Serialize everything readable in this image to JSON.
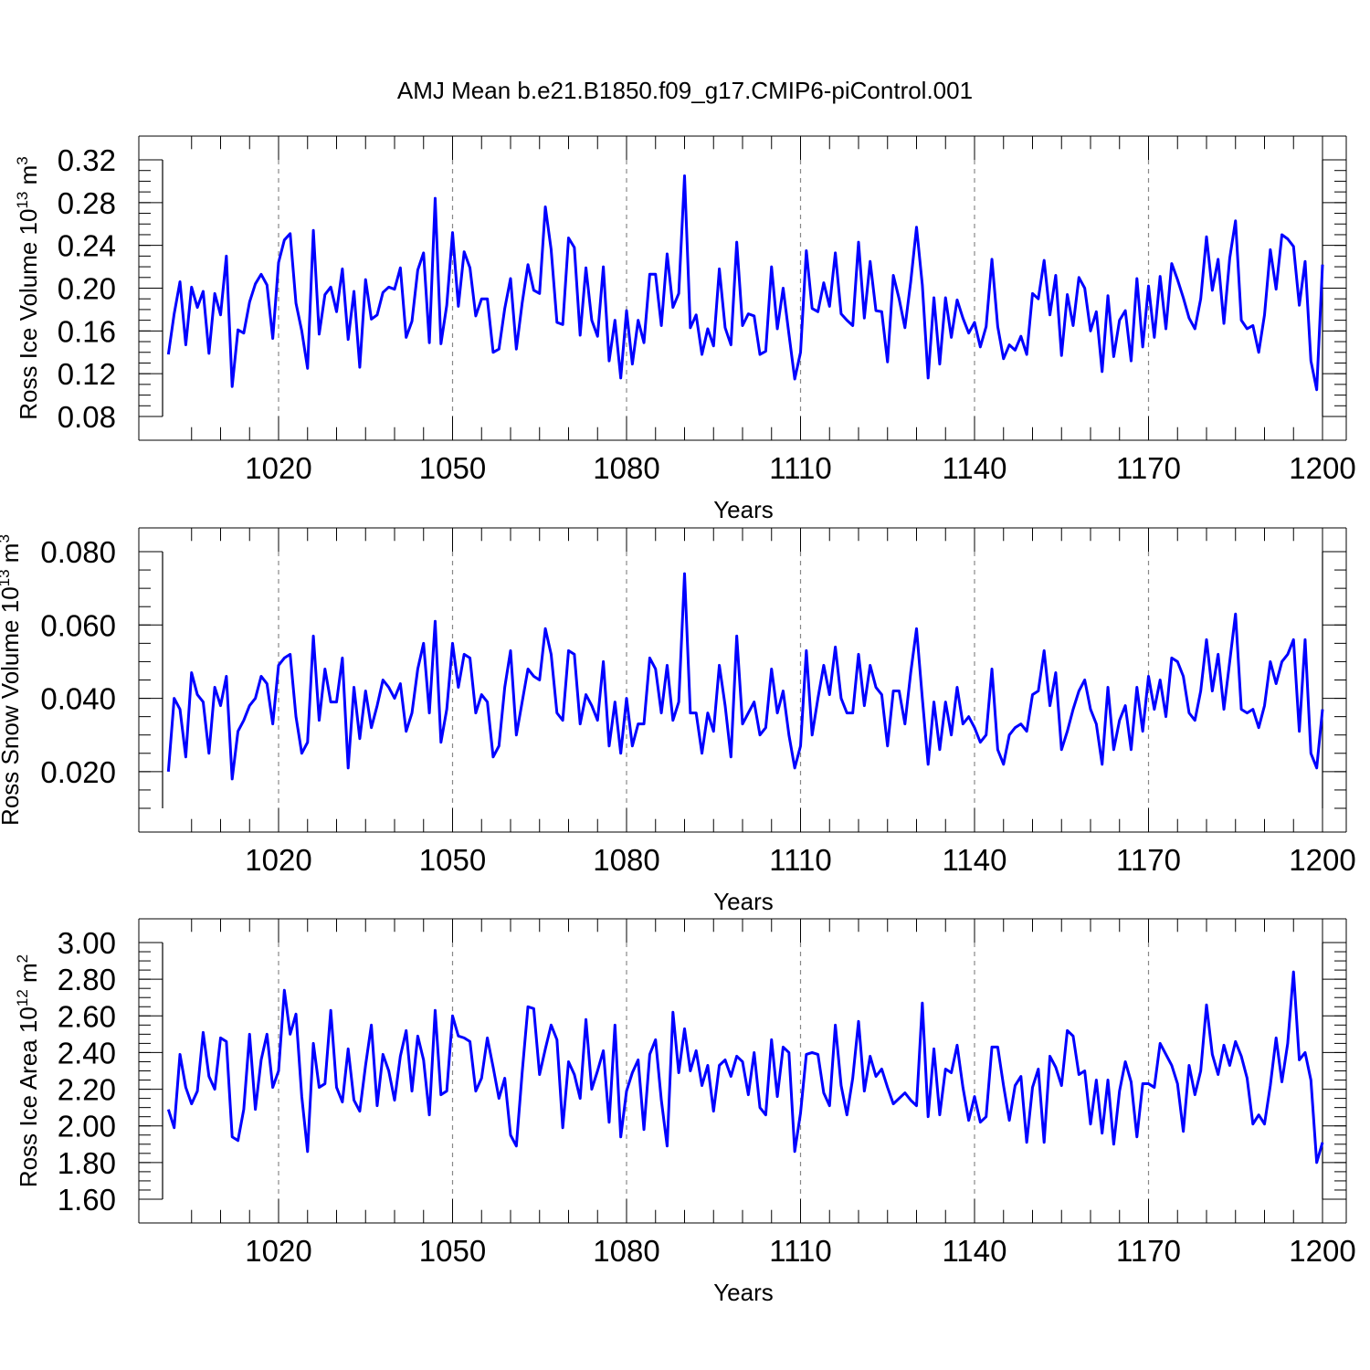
{
  "title": "AMJ Mean b.e21.B1850.f09_g17.CMIP6-piControl.001",
  "chart_data": [
    {
      "type": "line",
      "xlabel": "Years",
      "ylabel": "Ross Ice Volume 10",
      "ylabel_exp": "13",
      "ylabel_unit": "m",
      "ylabel_unit_exp": "3",
      "xlim": [
        1000,
        1200
      ],
      "ylim": [
        0.08,
        0.32
      ],
      "xticks": [
        1020,
        1050,
        1080,
        1110,
        1140,
        1170,
        1200
      ],
      "xtick_labels": [
        "1020",
        "1050",
        "1080",
        "1110",
        "1140",
        "1170",
        "1200"
      ],
      "yticks": [
        0.08,
        0.12,
        0.16,
        0.2,
        0.24,
        0.28,
        0.32
      ],
      "ytick_labels": [
        "0.08",
        "0.12",
        "0.16",
        "0.20",
        "0.24",
        "0.28",
        "0.32"
      ],
      "grid": "dashed vertical at x ticks",
      "line_color": "#0000ff",
      "x_start": 1001,
      "values": [
        0.138,
        0.176,
        0.206,
        0.147,
        0.201,
        0.182,
        0.197,
        0.139,
        0.195,
        0.175,
        0.23,
        0.108,
        0.161,
        0.158,
        0.187,
        0.204,
        0.213,
        0.203,
        0.153,
        0.224,
        0.245,
        0.251,
        0.186,
        0.16,
        0.125,
        0.254,
        0.157,
        0.194,
        0.201,
        0.178,
        0.218,
        0.152,
        0.197,
        0.126,
        0.208,
        0.171,
        0.175,
        0.196,
        0.201,
        0.199,
        0.219,
        0.154,
        0.169,
        0.217,
        0.233,
        0.149,
        0.284,
        0.148,
        0.184,
        0.252,
        0.183,
        0.234,
        0.219,
        0.174,
        0.19,
        0.19,
        0.14,
        0.143,
        0.181,
        0.209,
        0.143,
        0.186,
        0.222,
        0.198,
        0.195,
        0.276,
        0.236,
        0.168,
        0.166,
        0.247,
        0.238,
        0.156,
        0.219,
        0.17,
        0.155,
        0.22,
        0.132,
        0.17,
        0.116,
        0.179,
        0.129,
        0.17,
        0.149,
        0.213,
        0.213,
        0.165,
        0.232,
        0.182,
        0.195,
        0.305,
        0.163,
        0.175,
        0.138,
        0.162,
        0.146,
        0.218,
        0.163,
        0.147,
        0.243,
        0.165,
        0.176,
        0.174,
        0.138,
        0.141,
        0.22,
        0.162,
        0.2,
        0.157,
        0.115,
        0.14,
        0.235,
        0.181,
        0.178,
        0.205,
        0.183,
        0.233,
        0.176,
        0.17,
        0.165,
        0.243,
        0.172,
        0.225,
        0.179,
        0.178,
        0.131,
        0.212,
        0.19,
        0.163,
        0.206,
        0.257,
        0.203,
        0.116,
        0.191,
        0.129,
        0.191,
        0.154,
        0.189,
        0.172,
        0.158,
        0.168,
        0.145,
        0.164,
        0.227,
        0.164,
        0.134,
        0.147,
        0.142,
        0.155,
        0.138,
        0.195,
        0.19,
        0.226,
        0.175,
        0.212,
        0.137,
        0.194,
        0.165,
        0.21,
        0.2,
        0.16,
        0.178,
        0.122,
        0.193,
        0.136,
        0.17,
        0.179,
        0.132,
        0.209,
        0.145,
        0.202,
        0.154,
        0.211,
        0.162,
        0.223,
        0.208,
        0.191,
        0.172,
        0.162,
        0.19,
        0.248,
        0.198,
        0.227,
        0.167,
        0.228,
        0.263,
        0.17,
        0.162,
        0.165,
        0.14,
        0.175,
        0.236,
        0.199,
        0.25,
        0.246,
        0.239,
        0.184,
        0.225,
        0.132,
        0.105,
        0.222
      ]
    },
    {
      "type": "line",
      "xlabel": "Years",
      "ylabel": "Ross Snow Volume 10",
      "ylabel_exp": "13",
      "ylabel_unit": "m",
      "ylabel_unit_exp": "3",
      "xlim": [
        1000,
        1200
      ],
      "ylim": [
        0.01,
        0.08
      ],
      "xticks": [
        1020,
        1050,
        1080,
        1110,
        1140,
        1170,
        1200
      ],
      "xtick_labels": [
        "1020",
        "1050",
        "1080",
        "1110",
        "1140",
        "1170",
        "1200"
      ],
      "yticks": [
        0.02,
        0.04,
        0.06,
        0.08
      ],
      "ytick_labels": [
        "0.020",
        "0.040",
        "0.060",
        "0.080"
      ],
      "grid": "dashed vertical at x ticks",
      "line_color": "#0000ff",
      "x_start": 1001,
      "values": [
        0.02,
        0.04,
        0.037,
        0.024,
        0.047,
        0.041,
        0.039,
        0.025,
        0.043,
        0.038,
        0.046,
        0.018,
        0.031,
        0.034,
        0.038,
        0.04,
        0.046,
        0.044,
        0.033,
        0.049,
        0.051,
        0.052,
        0.035,
        0.025,
        0.028,
        0.057,
        0.034,
        0.048,
        0.039,
        0.039,
        0.051,
        0.021,
        0.043,
        0.029,
        0.042,
        0.032,
        0.038,
        0.045,
        0.043,
        0.04,
        0.044,
        0.031,
        0.036,
        0.048,
        0.055,
        0.036,
        0.061,
        0.028,
        0.037,
        0.055,
        0.043,
        0.052,
        0.051,
        0.036,
        0.041,
        0.039,
        0.024,
        0.027,
        0.043,
        0.053,
        0.03,
        0.039,
        0.048,
        0.046,
        0.045,
        0.059,
        0.052,
        0.036,
        0.034,
        0.053,
        0.052,
        0.033,
        0.041,
        0.038,
        0.034,
        0.05,
        0.027,
        0.039,
        0.025,
        0.04,
        0.027,
        0.033,
        0.033,
        0.051,
        0.048,
        0.036,
        0.049,
        0.034,
        0.039,
        0.074,
        0.036,
        0.036,
        0.025,
        0.036,
        0.031,
        0.049,
        0.038,
        0.024,
        0.057,
        0.033,
        0.036,
        0.039,
        0.03,
        0.032,
        0.048,
        0.036,
        0.042,
        0.03,
        0.021,
        0.027,
        0.053,
        0.03,
        0.04,
        0.049,
        0.041,
        0.054,
        0.04,
        0.036,
        0.036,
        0.052,
        0.038,
        0.049,
        0.043,
        0.041,
        0.027,
        0.042,
        0.042,
        0.033,
        0.047,
        0.059,
        0.04,
        0.022,
        0.039,
        0.026,
        0.039,
        0.03,
        0.043,
        0.033,
        0.035,
        0.032,
        0.028,
        0.03,
        0.048,
        0.026,
        0.022,
        0.03,
        0.032,
        0.033,
        0.031,
        0.041,
        0.042,
        0.053,
        0.038,
        0.047,
        0.026,
        0.031,
        0.037,
        0.042,
        0.045,
        0.037,
        0.033,
        0.022,
        0.043,
        0.026,
        0.034,
        0.038,
        0.026,
        0.043,
        0.031,
        0.046,
        0.037,
        0.045,
        0.035,
        0.051,
        0.05,
        0.046,
        0.036,
        0.034,
        0.042,
        0.056,
        0.042,
        0.052,
        0.037,
        0.05,
        0.063,
        0.037,
        0.036,
        0.037,
        0.032,
        0.038,
        0.05,
        0.044,
        0.05,
        0.052,
        0.056,
        0.031,
        0.056,
        0.025,
        0.021,
        0.037
      ]
    },
    {
      "type": "line",
      "xlabel": "Years",
      "ylabel": "Ross Ice Area 10",
      "ylabel_exp": "12",
      "ylabel_unit": "m",
      "ylabel_unit_exp": "2",
      "xlim": [
        1000,
        1200
      ],
      "ylim": [
        1.6,
        3.0
      ],
      "xticks": [
        1020,
        1050,
        1080,
        1110,
        1140,
        1170,
        1200
      ],
      "xtick_labels": [
        "1020",
        "1050",
        "1080",
        "1110",
        "1140",
        "1170",
        "1200"
      ],
      "yticks": [
        1.6,
        1.8,
        2.0,
        2.2,
        2.4,
        2.6,
        2.8,
        3.0
      ],
      "ytick_labels": [
        "1.60",
        "1.80",
        "2.00",
        "2.20",
        "2.40",
        "2.60",
        "2.80",
        "3.00"
      ],
      "grid": "dashed vertical at x ticks",
      "line_color": "#0000ff",
      "x_start": 1001,
      "values": [
        2.09,
        1.99,
        2.39,
        2.21,
        2.12,
        2.19,
        2.51,
        2.27,
        2.2,
        2.48,
        2.46,
        1.94,
        1.92,
        2.09,
        2.5,
        2.09,
        2.36,
        2.5,
        2.21,
        2.3,
        2.74,
        2.5,
        2.61,
        2.16,
        1.86,
        2.45,
        2.21,
        2.23,
        2.63,
        2.21,
        2.13,
        2.42,
        2.14,
        2.08,
        2.33,
        2.55,
        2.11,
        2.39,
        2.3,
        2.14,
        2.38,
        2.52,
        2.19,
        2.49,
        2.36,
        2.06,
        2.63,
        2.17,
        2.19,
        2.6,
        2.49,
        2.48,
        2.46,
        2.19,
        2.26,
        2.48,
        2.32,
        2.15,
        2.26,
        1.95,
        1.89,
        2.29,
        2.65,
        2.64,
        2.28,
        2.42,
        2.55,
        2.47,
        1.99,
        2.35,
        2.28,
        2.15,
        2.58,
        2.2,
        2.3,
        2.41,
        2.02,
        2.55,
        1.94,
        2.19,
        2.29,
        2.36,
        1.98,
        2.39,
        2.47,
        2.14,
        1.89,
        2.62,
        2.29,
        2.53,
        2.3,
        2.41,
        2.22,
        2.33,
        2.08,
        2.33,
        2.36,
        2.27,
        2.38,
        2.35,
        2.17,
        2.4,
        2.1,
        2.06,
        2.47,
        2.16,
        2.43,
        2.4,
        1.86,
        2.07,
        2.39,
        2.4,
        2.39,
        2.18,
        2.11,
        2.55,
        2.22,
        2.06,
        2.26,
        2.57,
        2.19,
        2.38,
        2.27,
        2.31,
        2.21,
        2.12,
        2.15,
        2.18,
        2.14,
        2.11,
        2.67,
        2.05,
        2.42,
        2.06,
        2.31,
        2.29,
        2.44,
        2.21,
        2.03,
        2.16,
        2.02,
        2.05,
        2.43,
        2.43,
        2.22,
        2.03,
        2.22,
        2.27,
        1.91,
        2.21,
        2.31,
        1.91,
        2.38,
        2.32,
        2.22,
        2.52,
        2.49,
        2.28,
        2.3,
        2.01,
        2.25,
        1.96,
        2.25,
        1.9,
        2.19,
        2.35,
        2.24,
        1.94,
        2.23,
        2.23,
        2.21,
        2.45,
        2.39,
        2.33,
        2.23,
        1.97,
        2.33,
        2.17,
        2.3,
        2.66,
        2.39,
        2.28,
        2.44,
        2.33,
        2.46,
        2.38,
        2.26,
        2.01,
        2.06,
        2.01,
        2.22,
        2.48,
        2.24,
        2.45,
        2.84,
        2.36,
        2.4,
        2.25,
        1.8,
        1.91
      ]
    }
  ]
}
